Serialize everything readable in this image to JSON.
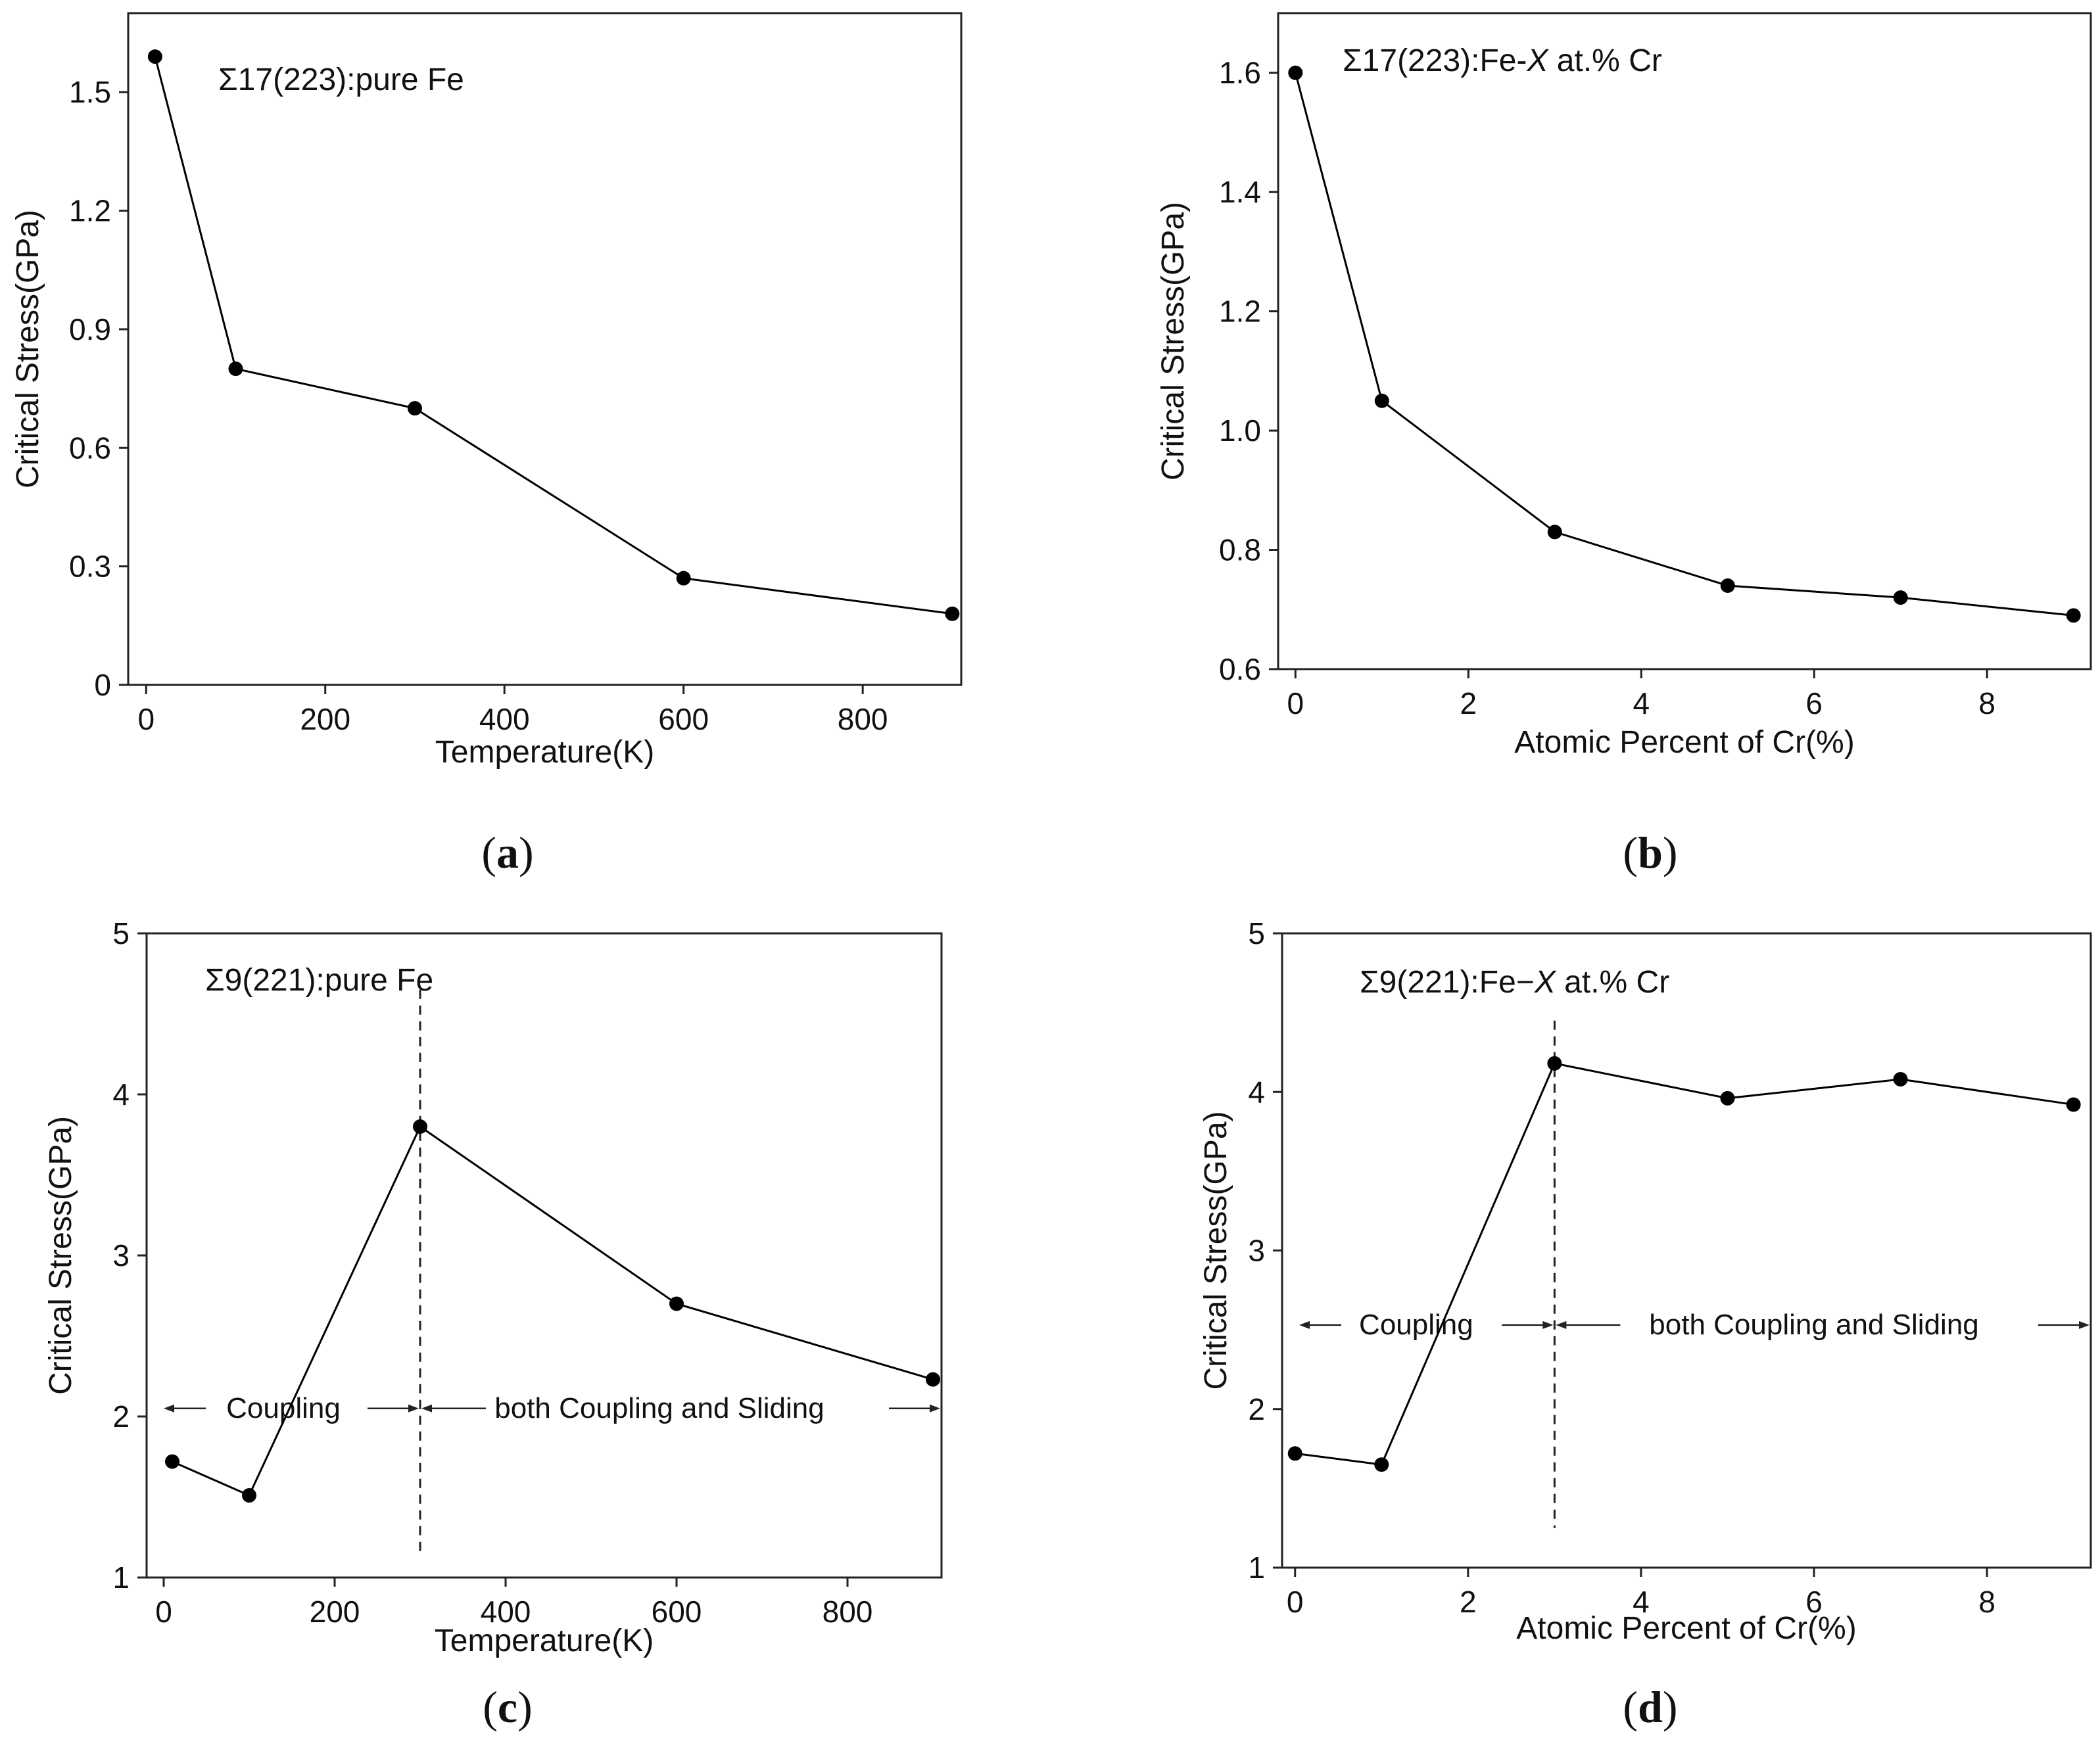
{
  "chart_data": [
    {
      "id": "a",
      "type": "line",
      "panel_label": "a",
      "title": "Σ17(223):pure Fe",
      "xlabel": "Temperature(K)",
      "ylabel": "Critical Stress(GPa)",
      "xlim": [
        -20,
        910
      ],
      "ylim": [
        0,
        1.7
      ],
      "xticks": [
        0,
        200,
        400,
        600,
        800
      ],
      "yticks": [
        0,
        0.3,
        0.6,
        0.9,
        1.2,
        1.5
      ],
      "ytick_labels": [
        "0",
        "0.3",
        "0.6",
        "0.9",
        "1.2",
        "1.5"
      ],
      "x": [
        10,
        100,
        300,
        600,
        900
      ],
      "values": [
        1.59,
        0.8,
        0.7,
        0.27,
        0.18
      ],
      "color": "#000000"
    },
    {
      "id": "b",
      "type": "line",
      "panel_label": "b",
      "title_parts": {
        "pre": "Σ17(223):Fe-",
        "var": "X",
        "post": " at.% Cr"
      },
      "xlabel": "Atomic Percent of Cr(%)",
      "ylabel": "Critical Stress(GPa)",
      "xlim": [
        -0.2,
        9.2
      ],
      "ylim": [
        0.6,
        1.7
      ],
      "xticks": [
        0,
        2,
        4,
        6,
        8
      ],
      "yticks": [
        0.6,
        0.8,
        1.0,
        1.2,
        1.4,
        1.6
      ],
      "ytick_labels": [
        "0.6",
        "0.8",
        "1.0",
        "1.2",
        "1.4",
        "1.6"
      ],
      "x": [
        0,
        1,
        3,
        5,
        7,
        9
      ],
      "values": [
        1.6,
        1.05,
        0.83,
        0.74,
        0.72,
        0.69
      ],
      "color": "#000000"
    },
    {
      "id": "c",
      "type": "line",
      "panel_label": "c",
      "title": "Σ9(221):pure Fe",
      "xlabel": "Temperature(K)",
      "ylabel": "Critical Stress(GPa)",
      "xlim": [
        -20,
        910
      ],
      "ylim": [
        1,
        5
      ],
      "xticks": [
        0,
        200,
        400,
        600,
        800
      ],
      "yticks": [
        1,
        2,
        3,
        4,
        5
      ],
      "ytick_labels": [
        "1",
        "2",
        "3",
        "4",
        "5"
      ],
      "x": [
        10,
        100,
        300,
        600,
        900
      ],
      "values": [
        1.72,
        1.51,
        3.8,
        2.7,
        2.23
      ],
      "divider_x": 300,
      "divider_range": [
        1.15,
        4.65
      ],
      "region_y": 2.05,
      "region_left": {
        "label": "Coupling",
        "label_x": 140
      },
      "region_right": {
        "label": "both Coupling and Sliding",
        "label_x": 580
      },
      "color": "#000000"
    },
    {
      "id": "d",
      "type": "line",
      "panel_label": "d",
      "title_parts": {
        "pre": "Σ9(221):Fe−",
        "var": "X",
        "post": " at.% Cr"
      },
      "xlabel": "Atomic Percent of Cr(%)",
      "ylabel": "Critical Stress(GPa)",
      "xlim": [
        -0.15,
        9.2
      ],
      "ylim": [
        1,
        5
      ],
      "xticks": [
        0,
        2,
        4,
        6,
        8
      ],
      "yticks": [
        1,
        2,
        3,
        4,
        5
      ],
      "ytick_labels": [
        "1",
        "2",
        "3",
        "4",
        "5"
      ],
      "x": [
        0,
        1,
        3,
        5,
        7,
        9
      ],
      "values": [
        1.72,
        1.65,
        4.18,
        3.96,
        4.08,
        3.92
      ],
      "divider_x": 3,
      "divider_range": [
        1.25,
        4.45
      ],
      "region_y": 2.53,
      "region_left": {
        "label": "Coupling",
        "label_x": 1.4
      },
      "region_right": {
        "label": "both Coupling and Sliding",
        "label_x": 6.0
      },
      "color": "#000000"
    }
  ]
}
